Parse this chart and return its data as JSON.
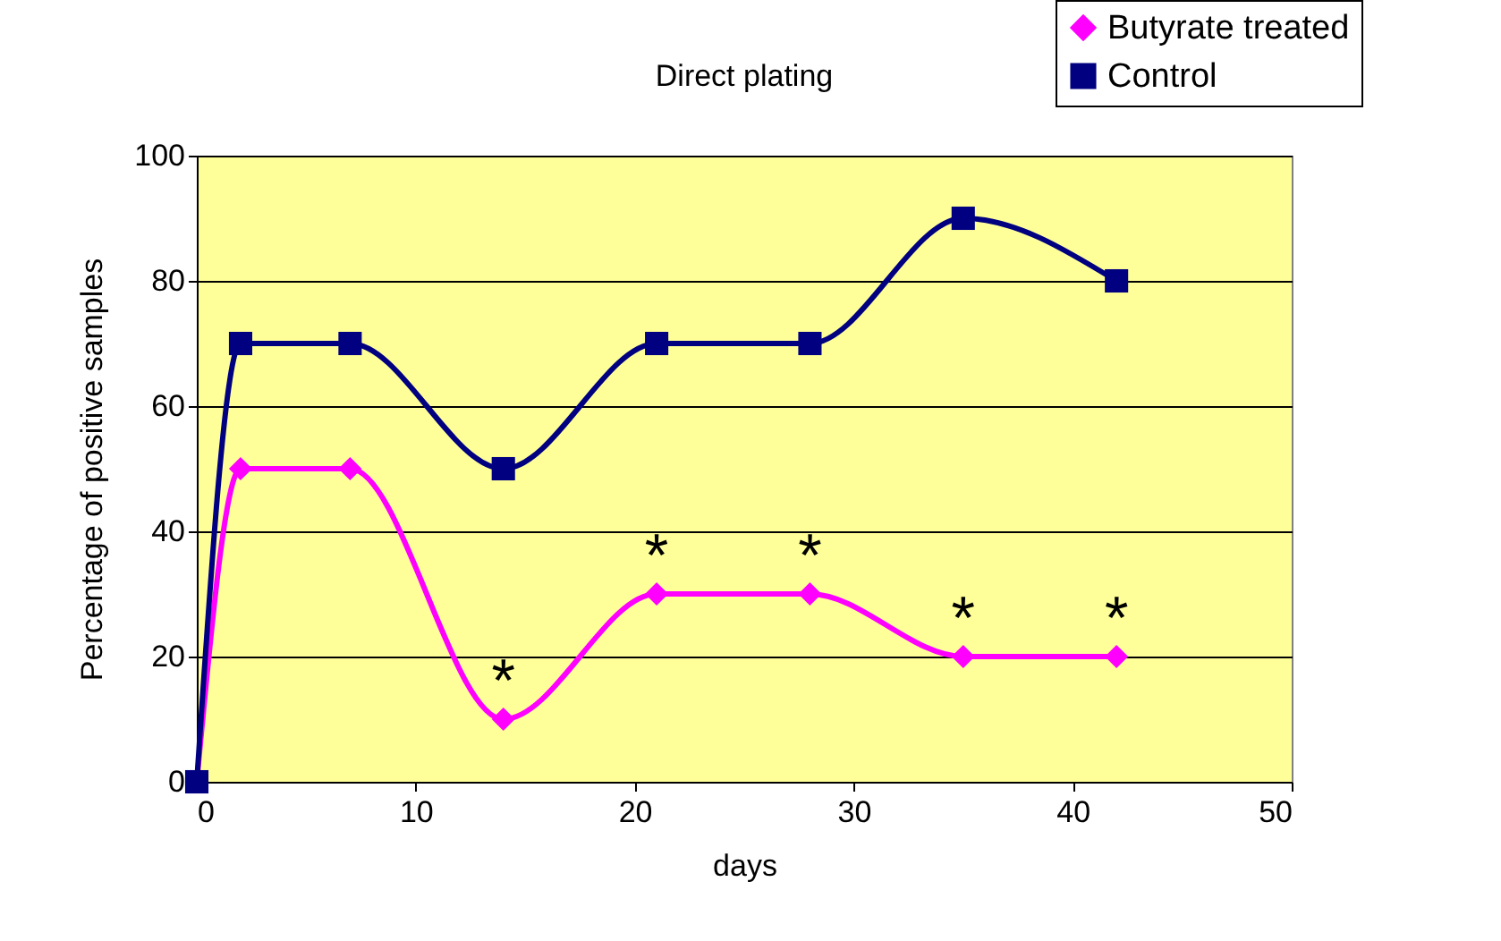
{
  "chart_data": {
    "type": "line",
    "title": "Direct plating",
    "xlabel": "days",
    "ylabel": "Percentage of positive samples",
    "x": [
      0,
      2,
      7,
      14,
      21,
      28,
      35,
      42
    ],
    "series": [
      {
        "name": "Butyrate treated",
        "color": "#ff00ff",
        "marker": "diamond",
        "values": [
          0,
          50,
          50,
          10,
          30,
          30,
          20,
          20
        ]
      },
      {
        "name": "Control",
        "color": "#000080",
        "marker": "square",
        "values": [
          0,
          70,
          70,
          50,
          70,
          70,
          90,
          80
        ]
      }
    ],
    "annotations": [
      {
        "text": "*",
        "x": 14,
        "y": 10
      },
      {
        "text": "*",
        "x": 21,
        "y": 30
      },
      {
        "text": "*",
        "x": 28,
        "y": 30
      },
      {
        "text": "*",
        "x": 35,
        "y": 20
      },
      {
        "text": "*",
        "x": 42,
        "y": 20
      }
    ],
    "xlim": [
      0,
      50
    ],
    "xticks": [
      0,
      10,
      20,
      30,
      40,
      50
    ],
    "ylim": [
      0,
      100
    ],
    "yticks": [
      0,
      20,
      40,
      60,
      80,
      100
    ],
    "grid": "y",
    "legend": "top right",
    "line_style": "solid"
  }
}
